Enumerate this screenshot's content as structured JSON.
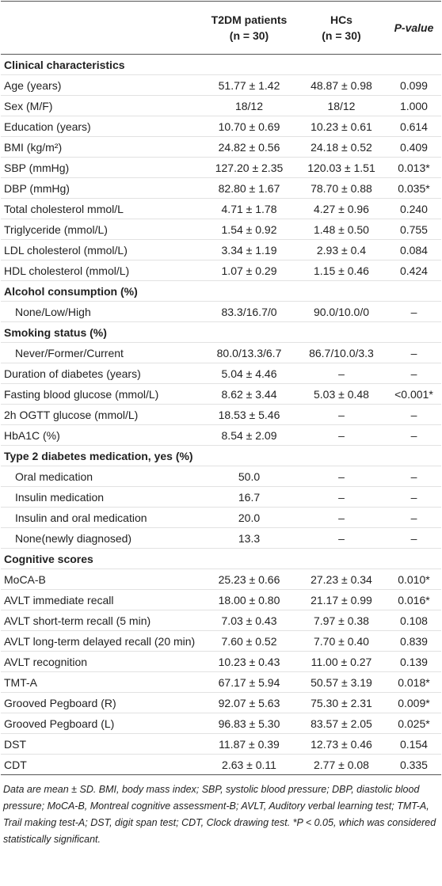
{
  "table": {
    "header": [
      "",
      "T2DM patients\n(n = 30)",
      "HCs\n(n = 30)",
      "P-value"
    ],
    "groups": [
      {
        "heading": "Clinical characteristics",
        "rows": [
          [
            "Age (years)",
            "51.77 ± 1.42",
            "48.87 ± 0.98",
            "0.099"
          ],
          [
            "Sex (M/F)",
            "18/12",
            "18/12",
            "1.000"
          ],
          [
            "Education (years)",
            "10.70 ± 0.69",
            "10.23 ± 0.61",
            "0.614"
          ],
          [
            "BMI (kg/m²)",
            "24.82 ± 0.56",
            "24.18 ± 0.52",
            "0.409"
          ],
          [
            "SBP (mmHg)",
            "127.20 ± 2.35",
            "120.03 ± 1.51",
            "0.013*"
          ],
          [
            "DBP (mmHg)",
            "82.80 ± 1.67",
            "78.70 ± 0.88",
            "0.035*"
          ],
          [
            "Total cholesterol mmol/L",
            "4.71 ± 1.78",
            "4.27 ± 0.96",
            "0.240"
          ],
          [
            "Triglyceride (mmol/L)",
            "1.54 ± 0.92",
            "1.48 ± 0.50",
            "0.755"
          ],
          [
            "LDL cholesterol (mmol/L)",
            "3.34 ± 1.19",
            "2.93 ± 0.4",
            "0.084"
          ],
          [
            "HDL cholesterol (mmol/L)",
            "1.07 ± 0.29",
            "1.15 ± 0.46",
            "0.424"
          ],
          {
            "heading": "Alcohol consumption (%)",
            "rows": [
              [
                "None/Low/High",
                "83.3/16.7/0",
                "90.0/10.0/0",
                "–"
              ]
            ]
          },
          {
            "heading": "Smoking status (%)",
            "rows": [
              [
                "Never/Former/Current",
                "80.0/13.3/6.7",
                "86.7/10.0/3.3",
                "–"
              ]
            ]
          },
          [
            "Duration of diabetes (years)",
            "5.04 ± 4.46",
            "–",
            "–"
          ],
          [
            "Fasting blood glucose (mmol/L)",
            "8.62 ± 3.44",
            "5.03 ± 0.48",
            "<0.001*"
          ],
          [
            "2h OGTT glucose (mmol/L)",
            "18.53 ± 5.46",
            "–",
            "–"
          ],
          [
            "HbA1C (%)",
            "8.54 ± 2.09",
            "–",
            "–"
          ],
          {
            "heading": "Type 2 diabetes medication, yes (%)",
            "rows": [
              [
                "Oral medication",
                "50.0",
                "–",
                "–"
              ],
              [
                "Insulin medication",
                "16.7",
                "–",
                "–"
              ],
              [
                "Insulin and oral medication",
                "20.0",
                "–",
                "–"
              ],
              [
                "None(newly diagnosed)",
                "13.3",
                "–",
                "–"
              ]
            ]
          }
        ]
      },
      {
        "heading": "Cognitive scores",
        "rows": [
          [
            "MoCA-B",
            "25.23 ± 0.66",
            "27.23 ± 0.34",
            "0.010*"
          ],
          [
            "AVLT immediate recall",
            "18.00 ± 0.80",
            "21.17 ± 0.99",
            "0.016*"
          ],
          [
            "AVLT short-term recall (5 min)",
            "7.03 ± 0.43",
            "7.97 ± 0.38",
            "0.108"
          ],
          [
            "AVLT long-term delayed recall (20 min)",
            "7.60 ± 0.52",
            "7.70 ± 0.40",
            "0.839"
          ],
          [
            "AVLT recognition",
            "10.23 ± 0.43",
            "11.00 ± 0.27",
            "0.139"
          ],
          [
            "TMT-A",
            "67.17 ± 5.94",
            "50.57 ± 3.19",
            "0.018*"
          ],
          [
            "Grooved Pegboard (R)",
            "92.07 ± 5.63",
            "75.30 ± 2.31",
            "0.009*"
          ],
          [
            "Grooved Pegboard (L)",
            "96.83 ± 5.30",
            "83.57 ± 2.05",
            "0.025*"
          ],
          [
            "DST",
            "11.87 ± 0.39",
            "12.73 ± 0.46",
            "0.154"
          ],
          [
            "CDT",
            "2.63 ± 0.11",
            "2.77 ± 0.08",
            "0.335"
          ]
        ]
      }
    ],
    "footnote": "Data are mean ± SD. BMI, body mass index; SBP, systolic blood pressure; DBP, diastolic blood pressure; MoCA-B, Montreal cognitive assessment-B; AVLT, Auditory verbal learning test; TMT-A, Trail making test-A; DST, digit span test; CDT, Clock drawing test. *P < 0.05, which was considered statistically significant."
  }
}
